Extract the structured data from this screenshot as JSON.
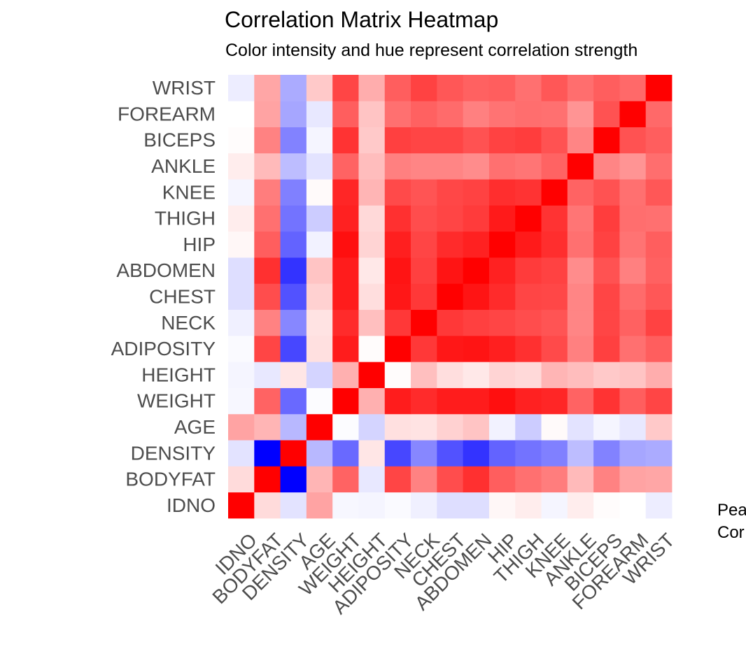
{
  "chart_data": {
    "type": "heatmap",
    "title": "Correlation Matrix Heatmap",
    "subtitle": "Color intensity and hue represent correlation strength",
    "xlabel": "",
    "ylabel": "",
    "variables": [
      "IDNO",
      "BODYFAT",
      "DENSITY",
      "AGE",
      "WEIGHT",
      "HEIGHT",
      "ADIPOSITY",
      "NECK",
      "CHEST",
      "ABDOMEN",
      "HIP",
      "THIGH",
      "KNEE",
      "ANKLE",
      "BICEPS",
      "FOREARM",
      "WRIST"
    ],
    "color_scale": {
      "low": -1,
      "mid": 0,
      "high": 1,
      "low_color": "#0000FF",
      "mid_color": "#FFFFFF",
      "high_color": "#FF0000"
    },
    "legend": {
      "title_lines": [
        "Pea",
        "Cor"
      ],
      "placement": "right"
    },
    "grid": false,
    "matrix": [
      [
        1.0,
        0.14,
        -0.11,
        0.36,
        -0.03,
        -0.04,
        -0.02,
        -0.06,
        -0.13,
        -0.13,
        0.03,
        0.07,
        -0.04,
        0.07,
        0.01,
        0.0,
        -0.07
      ],
      [
        0.14,
        1.0,
        -1.0,
        0.29,
        0.61,
        -0.09,
        0.73,
        0.49,
        0.7,
        0.81,
        0.63,
        0.56,
        0.51,
        0.27,
        0.49,
        0.36,
        0.35
      ],
      [
        -0.11,
        -1.0,
        1.0,
        -0.28,
        -0.59,
        0.1,
        -0.72,
        -0.47,
        -0.68,
        -0.8,
        -0.61,
        -0.55,
        -0.5,
        -0.26,
        -0.49,
        -0.35,
        -0.33
      ],
      [
        0.36,
        0.29,
        -0.28,
        1.0,
        -0.01,
        -0.17,
        0.12,
        0.11,
        0.18,
        0.23,
        -0.05,
        -0.2,
        0.02,
        -0.11,
        -0.04,
        -0.09,
        0.21
      ],
      [
        -0.03,
        0.61,
        -0.59,
        -0.01,
        1.0,
        0.31,
        0.89,
        0.83,
        0.89,
        0.89,
        0.94,
        0.87,
        0.85,
        0.61,
        0.8,
        0.63,
        0.73
      ],
      [
        -0.04,
        -0.09,
        0.1,
        -0.17,
        0.31,
        1.0,
        0.01,
        0.25,
        0.13,
        0.09,
        0.17,
        0.15,
        0.29,
        0.26,
        0.21,
        0.23,
        0.32
      ],
      [
        -0.02,
        0.73,
        -0.72,
        0.12,
        0.89,
        0.01,
        1.0,
        0.78,
        0.91,
        0.92,
        0.88,
        0.81,
        0.71,
        0.5,
        0.75,
        0.56,
        0.63
      ],
      [
        -0.06,
        0.49,
        -0.47,
        0.11,
        0.83,
        0.25,
        0.78,
        1.0,
        0.78,
        0.75,
        0.73,
        0.7,
        0.67,
        0.48,
        0.73,
        0.62,
        0.74
      ],
      [
        -0.13,
        0.7,
        -0.68,
        0.18,
        0.89,
        0.13,
        0.91,
        0.78,
        1.0,
        0.92,
        0.83,
        0.73,
        0.72,
        0.48,
        0.73,
        0.58,
        0.66
      ],
      [
        -0.13,
        0.81,
        -0.8,
        0.23,
        0.89,
        0.09,
        0.92,
        0.75,
        0.92,
        1.0,
        0.87,
        0.77,
        0.74,
        0.45,
        0.68,
        0.5,
        0.62
      ],
      [
        0.03,
        0.63,
        -0.61,
        -0.05,
        0.94,
        0.17,
        0.88,
        0.73,
        0.83,
        0.87,
        1.0,
        0.9,
        0.82,
        0.56,
        0.74,
        0.55,
        0.63
      ],
      [
        0.07,
        0.56,
        -0.55,
        -0.2,
        0.87,
        0.15,
        0.81,
        0.7,
        0.73,
        0.77,
        0.9,
        1.0,
        0.8,
        0.54,
        0.76,
        0.57,
        0.56
      ],
      [
        -0.04,
        0.51,
        -0.5,
        0.02,
        0.85,
        0.29,
        0.71,
        0.67,
        0.72,
        0.74,
        0.82,
        0.8,
        1.0,
        0.61,
        0.68,
        0.56,
        0.66
      ],
      [
        0.07,
        0.27,
        -0.26,
        -0.11,
        0.61,
        0.26,
        0.5,
        0.48,
        0.48,
        0.45,
        0.56,
        0.54,
        0.61,
        1.0,
        0.48,
        0.42,
        0.57
      ],
      [
        0.01,
        0.49,
        -0.49,
        -0.04,
        0.8,
        0.21,
        0.75,
        0.73,
        0.73,
        0.68,
        0.74,
        0.76,
        0.68,
        0.48,
        1.0,
        0.68,
        0.63
      ],
      [
        0.0,
        0.36,
        -0.35,
        -0.09,
        0.63,
        0.23,
        0.56,
        0.62,
        0.58,
        0.5,
        0.55,
        0.57,
        0.56,
        0.42,
        0.68,
        1.0,
        0.59
      ],
      [
        -0.07,
        0.35,
        -0.33,
        0.21,
        0.73,
        0.32,
        0.63,
        0.74,
        0.66,
        0.62,
        0.63,
        0.56,
        0.66,
        0.57,
        0.63,
        0.59,
        1.0
      ]
    ]
  }
}
